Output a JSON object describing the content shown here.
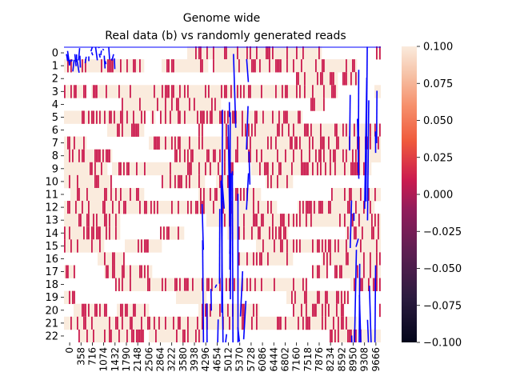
{
  "chart_data": {
    "type": "heatmap",
    "title_line1": "Genome wide",
    "title_line2": "Real data (b) vs randomly generated reads",
    "row_labels": [
      "0",
      "1",
      "2",
      "3",
      "4",
      "5",
      "6",
      "7",
      "8",
      "9",
      "10",
      "11",
      "12",
      "13",
      "14",
      "15",
      "16",
      "17",
      "18",
      "19",
      "20",
      "21",
      "22"
    ],
    "x_tick_labels": [
      "0",
      "358",
      "716",
      "1074",
      "1432",
      "1790",
      "2148",
      "2506",
      "2864",
      "3222",
      "3580",
      "3938",
      "4296",
      "4654",
      "5012",
      "5370",
      "5728",
      "6086",
      "6444",
      "6802",
      "7160",
      "7518",
      "7876",
      "8234",
      "8592",
      "8950",
      "9308",
      "9666"
    ],
    "x_tick_step": 358,
    "x_max": 10000,
    "colorbar": {
      "min": -0.1,
      "max": 0.1,
      "tick_labels": [
        "0.100",
        "0.075",
        "0.050",
        "0.025",
        "0.000",
        "−0.025",
        "−0.050",
        "−0.075",
        "−0.100"
      ],
      "tick_values": [
        0.1,
        0.075,
        0.05,
        0.025,
        0.0,
        -0.025,
        -0.05,
        -0.075,
        -0.1
      ]
    },
    "overlay_line_color": "#0000ff",
    "cell_colors": {
      "high": "#faebdd",
      "mid": "#cb1b4f",
      "zero": "#ffffff"
    }
  }
}
